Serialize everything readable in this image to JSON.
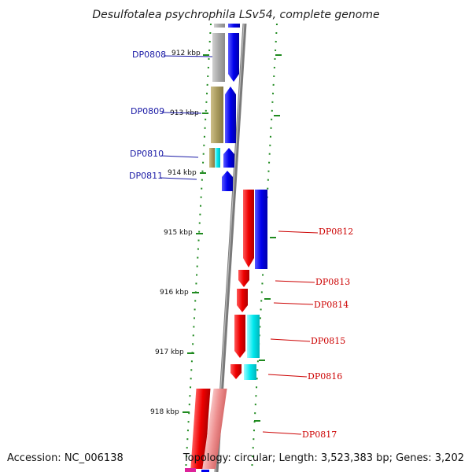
{
  "title": "Desulfotalea psychrophila LSv54, complete genome",
  "footer": {
    "accession": "Accession: NC_006138",
    "topology": "Topology: circular; Length: 3,523,383 bp; Genes: 3,202"
  },
  "kbp_labels": [
    "912 kbp",
    "913 kbp",
    "914 kbp",
    "915 kbp",
    "916 kbp",
    "917 kbp",
    "918 kbp"
  ],
  "left_genes": [
    "DP0808",
    "DP0809",
    "DP0810",
    "DP0811"
  ],
  "right_genes": [
    "DP0812",
    "DP0813",
    "DP0814",
    "DP0815",
    "DP0816",
    "DP0817"
  ],
  "colors": {
    "backbone": "#7a7a7a",
    "forward_cds": "#0000ee",
    "reverse_cds": "#ee0000",
    "tick": "#1f8a1f",
    "gene_label_left": "#1a1aa6",
    "gene_label_right": "#cc0000"
  }
}
